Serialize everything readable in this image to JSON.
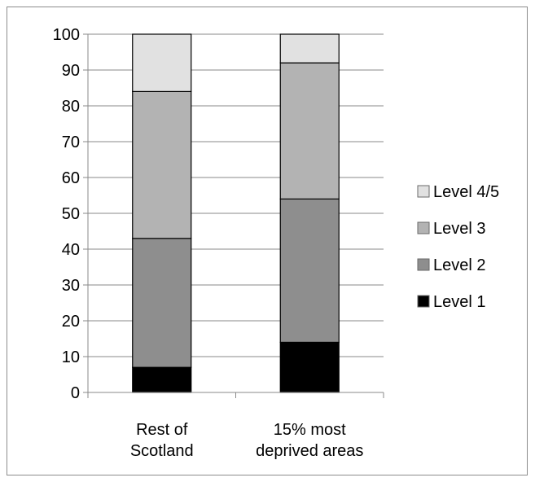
{
  "chart_data": {
    "type": "bar",
    "stacked": true,
    "title": "",
    "xlabel": "",
    "ylabel": "",
    "ylim": [
      0,
      100
    ],
    "yticks": [
      0,
      10,
      20,
      30,
      40,
      50,
      60,
      70,
      80,
      90,
      100
    ],
    "grid": true,
    "legend_position": "right",
    "categories": [
      [
        "Rest of",
        "Scotland"
      ],
      [
        "15% most",
        "deprived areas"
      ]
    ],
    "series": [
      {
        "name": "Level 1",
        "values": [
          7,
          14
        ],
        "color": "#000000"
      },
      {
        "name": "Level 2",
        "values": [
          36,
          40
        ],
        "color": "#8e8e8e"
      },
      {
        "name": "Level 3",
        "values": [
          41,
          38
        ],
        "color": "#b3b3b3"
      },
      {
        "name": "Level 4/5",
        "values": [
          16,
          8
        ],
        "color": "#e1e1e1"
      }
    ],
    "legend_order": [
      "Level 4/5",
      "Level 3",
      "Level 2",
      "Level 1"
    ]
  }
}
